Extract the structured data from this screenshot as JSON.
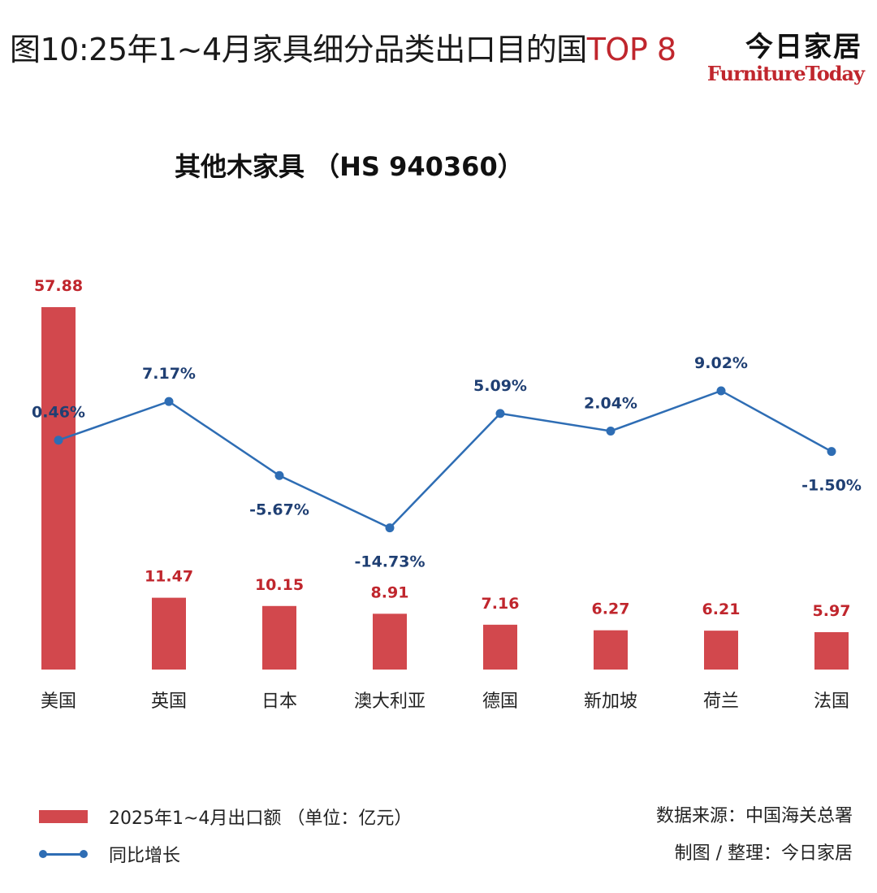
{
  "header": {
    "title_main": "图10:25年1~4月家具细分品类出口目的国",
    "title_accent": "TOP 8",
    "brand_cn": "今日家居",
    "brand_en": "FurnitureToday"
  },
  "legend": {
    "bar_label": "2025年1~4月出口额 （单位：亿元）",
    "line_label": "同比增长"
  },
  "footer": {
    "source": "数据来源：中国海关总署",
    "credit": "制图 / 整理：今日家居"
  },
  "colors": {
    "bar": "#d2484d",
    "bar_label": "#c0262d",
    "line": "#2e6db4",
    "line_label": "#1f3f73"
  },
  "chart_data": {
    "type": "bar",
    "title": "其他木家具 （HS 940360）",
    "categories": [
      "美国",
      "英国",
      "日本",
      "澳大利亚",
      "德国",
      "新加坡",
      "荷兰",
      "法国"
    ],
    "series": [
      {
        "name": "2025年1~4月出口额 （单位：亿元）",
        "type": "bar",
        "values": [
          57.88,
          11.47,
          10.15,
          8.91,
          7.16,
          6.27,
          6.21,
          5.97
        ],
        "labels": [
          "57.88",
          "11.47",
          "10.15",
          "8.91",
          "7.16",
          "6.27",
          "6.21",
          "5.97"
        ]
      },
      {
        "name": "同比增长",
        "type": "line",
        "values": [
          0.46,
          7.17,
          -5.67,
          -14.73,
          5.09,
          2.04,
          9.02,
          -1.5
        ],
        "labels": [
          "0.46%",
          "7.17%",
          "-5.67%",
          "-14.73%",
          "5.09%",
          "2.04%",
          "9.02%",
          "-1.50%"
        ]
      }
    ],
    "grid": false,
    "legend_position": "bottom-left"
  }
}
